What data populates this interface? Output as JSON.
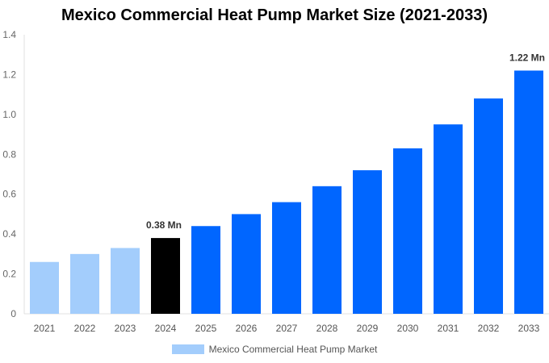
{
  "chart_data": {
    "type": "bar",
    "title": "Mexico Commercial Heat Pump Market Size (2021-2033)",
    "xlabel": "",
    "ylabel": "",
    "categories": [
      "2021",
      "2022",
      "2023",
      "2024",
      "2025",
      "2026",
      "2027",
      "2028",
      "2029",
      "2030",
      "2031",
      "2032",
      "2033"
    ],
    "series": [
      {
        "name": "Mexico Commercial Heat Pump Market",
        "values": [
          0.26,
          0.3,
          0.33,
          0.38,
          0.44,
          0.5,
          0.56,
          0.64,
          0.72,
          0.83,
          0.95,
          1.08,
          1.22
        ]
      }
    ],
    "bar_colors": [
      "#a3cdfc",
      "#a3cdfc",
      "#a3cdfc",
      "#000000",
      "#0066ff",
      "#0066ff",
      "#0066ff",
      "#0066ff",
      "#0066ff",
      "#0066ff",
      "#0066ff",
      "#0066ff",
      "#0066ff"
    ],
    "data_labels": {
      "3": "0.38 Mn",
      "12": "1.22 Mn"
    },
    "ylim": [
      0,
      1.4
    ],
    "yticks": [
      "0",
      "0.2",
      "0.4",
      "0.6",
      "0.8",
      "1.0",
      "1.2",
      "1.4"
    ],
    "grid": false,
    "legend": "bottom",
    "legend_color": "#a3cdfc"
  }
}
